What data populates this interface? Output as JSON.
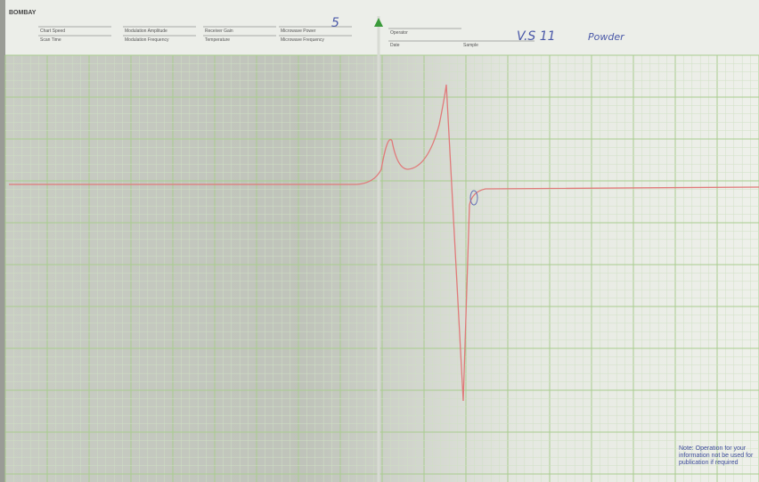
{
  "header": {
    "title": "BOMBAY",
    "fields": [
      "Chart Speed",
      "Scan Time",
      "Modulation Amplitude",
      "Modulation Frequency",
      "Receiver Gain",
      "Temperature",
      "Microwave Power",
      "Microwave Frequency",
      "Operator",
      "Date",
      "Sample"
    ],
    "handwritten": {
      "gain": "5",
      "sample": "V.S 11",
      "state": "Powder"
    }
  },
  "footer": {
    "note": "Note: Operation for your information not be used for publication if required"
  }
}
